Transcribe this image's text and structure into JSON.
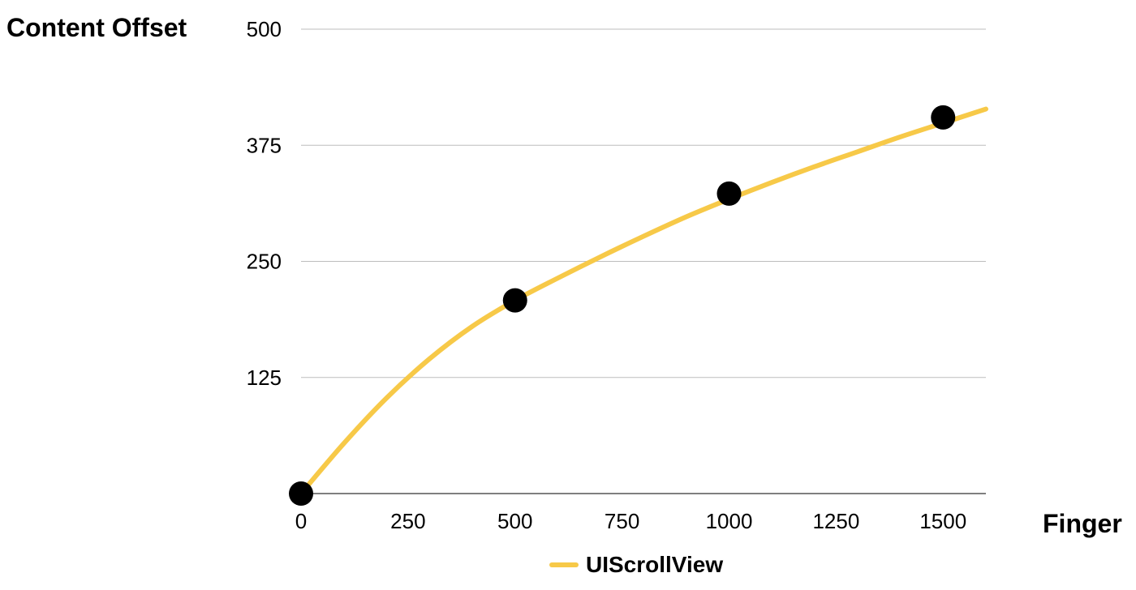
{
  "chart_data": {
    "type": "line",
    "title": "",
    "ylabel": "Content Offset",
    "xlabel": "Finger",
    "xlim": [
      0,
      1600
    ],
    "ylim": [
      0,
      500
    ],
    "x_ticks": [
      0,
      250,
      500,
      750,
      1000,
      1250,
      1500
    ],
    "y_ticks": [
      125,
      250,
      375,
      500
    ],
    "grid": true,
    "legend_placement": "bottom",
    "series": [
      {
        "name": "UIScrollView",
        "color": "#F7C948",
        "line_x": [
          0,
          100,
          200,
          300,
          400,
          500,
          600,
          700,
          800,
          900,
          1000,
          1100,
          1200,
          1300,
          1400,
          1500,
          1600
        ],
        "line_y": [
          0,
          54,
          103,
          145,
          180,
          208,
          232,
          255,
          277,
          298,
          317,
          335,
          352,
          368,
          384,
          399,
          414
        ]
      }
    ],
    "markers": {
      "color": "#000000",
      "x": [
        0,
        500,
        1000,
        1500
      ],
      "y": [
        0,
        208,
        323,
        405
      ]
    }
  }
}
